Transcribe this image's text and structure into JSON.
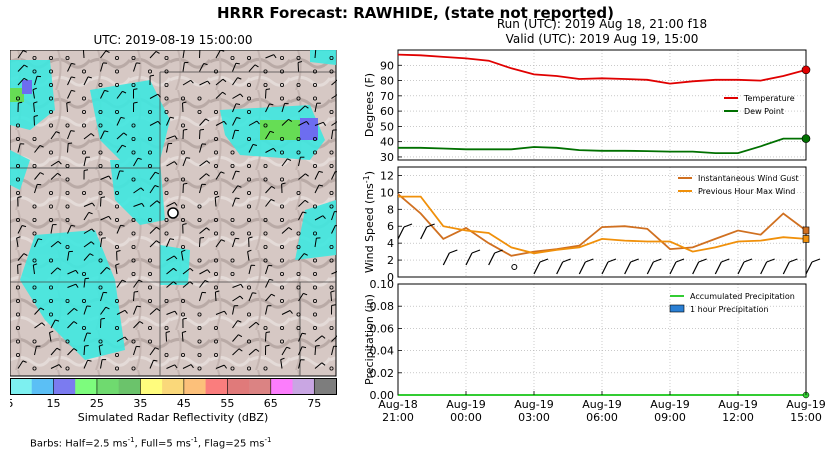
{
  "header": {
    "title": "HRRR Forecast: RAWHIDE, (state not reported)",
    "map_title": "UTC: 2019-08-19 15:00:00",
    "run_line": "Run (UTC): 2019 Aug 18, 21:00 f18",
    "valid_line": "Valid (UTC): 2019 Aug 19, 15:00"
  },
  "colorbar": {
    "label": "Simulated Radar Reflectivity (dBZ)",
    "tick_labels": [
      "5",
      "15",
      "25",
      "35",
      "45",
      "55",
      "65",
      "75"
    ],
    "colors": [
      "#7df0f0",
      "#5bbff5",
      "#7b7bf0",
      "#7dfc7d",
      "#6fda6f",
      "#6bc36b",
      "#fffc7d",
      "#fad87a",
      "#fcc07a",
      "#fa7d7d",
      "#e07a7a",
      "#db8383",
      "#fc7dfc",
      "#c9a6e3",
      "#7d7d7d"
    ]
  },
  "barb_note": {
    "prefix": "Barbs: Half=2.5 ms",
    "mid1": ", Full=5 ms",
    "mid2": ", Flag=25 ms",
    "sup": "-1"
  },
  "chart_data": [
    {
      "type": "line",
      "x_tick_labels": [
        [
          "Aug-18",
          "21:00"
        ],
        [
          "Aug-19",
          "00:00"
        ],
        [
          "Aug-19",
          "03:00"
        ],
        [
          "Aug-19",
          "06:00"
        ],
        [
          "Aug-19",
          "09:00"
        ],
        [
          "Aug-19",
          "12:00"
        ],
        [
          "Aug-19",
          "15:00"
        ]
      ],
      "x_hours": [
        0,
        1,
        2,
        3,
        4,
        5,
        6,
        7,
        8,
        9,
        10,
        11,
        12,
        13,
        14,
        15,
        16,
        17,
        18
      ],
      "ylabel": "Degrees (F)",
      "ylim": [
        28,
        100
      ],
      "yticks": [
        30,
        40,
        50,
        60,
        70,
        80,
        90
      ],
      "grid": true,
      "legend": "right",
      "series": [
        {
          "name": "Temperature",
          "color": "#e00000",
          "values": [
            97,
            96.5,
            95.5,
            94.5,
            93,
            88,
            84,
            83,
            81,
            81.5,
            81,
            80.5,
            78,
            79.5,
            80.5,
            80.5,
            80,
            83,
            87
          ]
        },
        {
          "name": "Dew Point",
          "color": "#007000",
          "values": [
            36,
            36,
            35.5,
            35,
            35,
            35,
            36.5,
            36,
            34.5,
            34,
            34,
            33.8,
            33.5,
            33.5,
            32.5,
            32.5,
            37,
            42,
            42
          ]
        }
      ]
    },
    {
      "type": "line",
      "ylabel": "Wind Speed (ms-1)",
      "ylabel_main": "Wind Speed (ms",
      "ylabel_sup": "-1",
      "ylabel_end": ")",
      "ylim": [
        0,
        13
      ],
      "yticks": [
        0,
        2,
        4,
        6,
        8,
        10,
        12
      ],
      "grid": true,
      "legend": "upper-right",
      "series": [
        {
          "name": "Instantaneous Wind Gust",
          "color": "#d07020",
          "values": [
            9.8,
            7.5,
            4.5,
            5.8,
            4,
            2.5,
            3,
            3.3,
            3.7,
            5.9,
            6,
            5.7,
            3.3,
            3.5,
            4.5,
            5.5,
            5,
            7.5,
            5.5
          ]
        },
        {
          "name": "Previous Hour Max Wind",
          "color": "#f0900a",
          "values": [
            9.5,
            9.5,
            6,
            5.5,
            5.2,
            3.5,
            2.8,
            3.2,
            3.5,
            4.5,
            4.3,
            4.2,
            4.2,
            3,
            3.5,
            4.2,
            4.3,
            4.7,
            4.5
          ]
        }
      ]
    },
    {
      "type": "area",
      "ylabel": "Precipitation (in)",
      "ylim": [
        0,
        0.1
      ],
      "yticks": [
        "0.00",
        "0.02",
        "0.04",
        "0.06",
        "0.08",
        "0.10"
      ],
      "grid": true,
      "legend": "upper-right",
      "series": [
        {
          "name": "Accumulated Precipitation",
          "color": "#33cc33",
          "values": [
            0,
            0,
            0,
            0,
            0,
            0,
            0,
            0,
            0,
            0,
            0,
            0,
            0,
            0,
            0,
            0,
            0,
            0,
            0
          ]
        },
        {
          "name": "1 hour Precipitation",
          "color": "#2a7fd4",
          "values": [
            0,
            0,
            0,
            0,
            0,
            0,
            0,
            0,
            0,
            0,
            0,
            0,
            0,
            0,
            0,
            0,
            0,
            0,
            0
          ]
        }
      ]
    }
  ]
}
